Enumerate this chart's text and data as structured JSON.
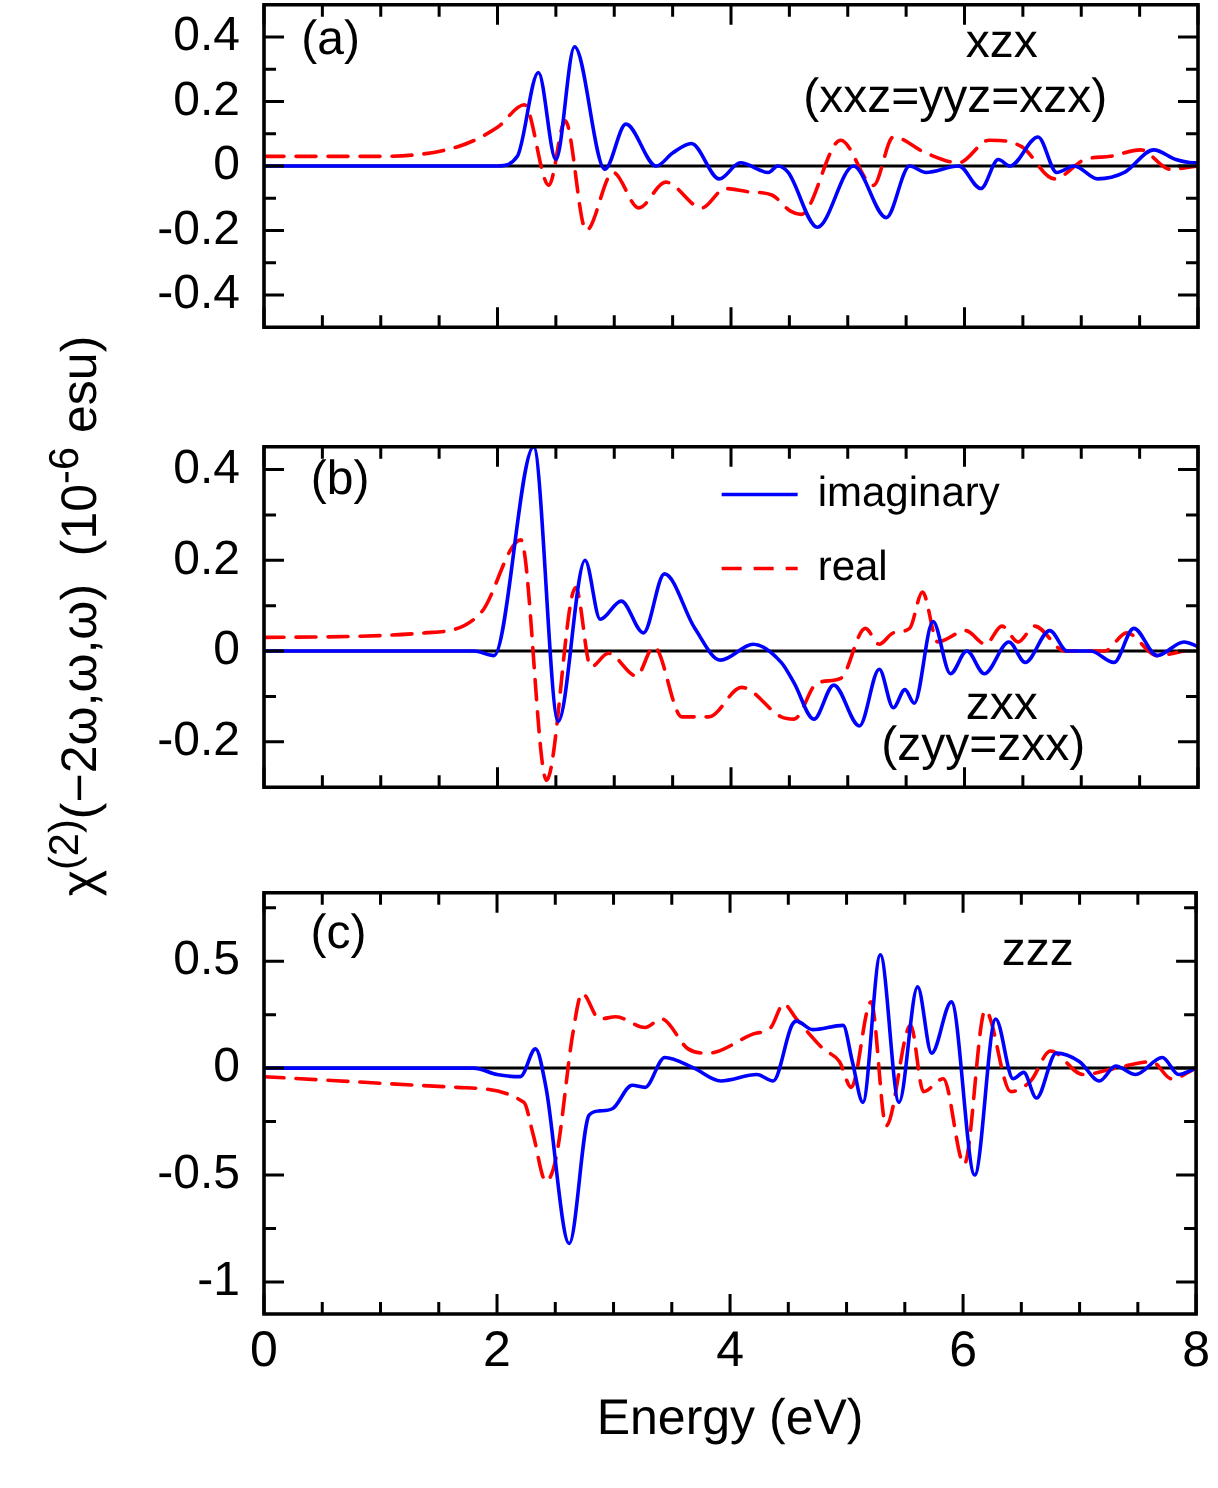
{
  "chart_data": [
    {
      "type": "line",
      "marker": "none",
      "xlim": [
        0,
        8
      ],
      "ylim": [
        -0.5,
        0.5
      ],
      "tick_labels": "y",
      "xticks": [
        0,
        {
          "value": 0.5,
          "label": null
        },
        {
          "value": 1,
          "label": null
        },
        {
          "value": 1.5,
          "label": null
        },
        2,
        {
          "value": 2.5,
          "label": null
        },
        {
          "value": 3,
          "label": null
        },
        {
          "value": 3.5,
          "label": null
        },
        4,
        {
          "value": 4.5,
          "label": null
        },
        {
          "value": 5,
          "label": null
        },
        {
          "value": 5.5,
          "label": null
        },
        6,
        {
          "value": 6.5,
          "label": null
        },
        {
          "value": 7,
          "label": null
        },
        {
          "value": 7.5,
          "label": null
        },
        8
      ],
      "yticks": [
        -0.4,
        {
          "value": -0.3,
          "label": null
        },
        -0.2,
        {
          "value": -0.1,
          "label": null
        },
        0,
        {
          "value": 0.1,
          "label": null
        },
        0.2,
        {
          "value": 0.3,
          "label": null
        },
        0.4
      ],
      "ref_lines": [
        {
          "axis": "y",
          "value": 0,
          "color": "#000000"
        }
      ],
      "annotations": [
        "(a)",
        "xzx",
        "(xxz=yyz=xzx)"
      ],
      "series": [
        {
          "color": "#0000ff",
          "line_style": "solid",
          "x": [
            0,
            1.9,
            2.0,
            2.17,
            2.35,
            2.5,
            2.66,
            2.92,
            3.1,
            3.36,
            3.5,
            3.66,
            3.9,
            4.08,
            4.32,
            4.4,
            4.49,
            4.74,
            5.05,
            5.33,
            5.53,
            5.67,
            5.95,
            6.14,
            6.29,
            6.39,
            6.63,
            6.79,
            6.94,
            7.14,
            7.37,
            7.62,
            7.81,
            7.96,
            8
          ],
          "values": [
            0,
            0,
            0,
            0.03,
            0.29,
            0.02,
            0.37,
            -0.01,
            0.13,
            0,
            0.04,
            0.07,
            -0.04,
            0.01,
            -0.02,
            0,
            -0.02,
            -0.19,
            0,
            -0.16,
            0,
            -0.02,
            0,
            -0.07,
            0.02,
            0,
            0.09,
            -0.02,
            0,
            -0.04,
            -0.02,
            0.05,
            0.02,
            0.01,
            0.01
          ]
        },
        {
          "color": "#ff0000",
          "line_style": "dashed",
          "x": [
            0,
            1.0,
            1.66,
            2.0,
            2.23,
            2.44,
            2.58,
            2.76,
            2.99,
            3.21,
            3.44,
            3.75,
            3.95,
            4.15,
            4.35,
            4.51,
            4.6,
            4.94,
            5.22,
            5.39,
            5.67,
            5.95,
            6.21,
            6.49,
            6.77,
            7.03,
            7.25,
            7.51,
            7.76,
            8
          ],
          "values": [
            0.03,
            0.03,
            0.06,
            0.12,
            0.19,
            -0.06,
            0.14,
            -0.2,
            -0.02,
            -0.13,
            -0.05,
            -0.13,
            -0.07,
            -0.08,
            -0.09,
            -0.14,
            -0.15,
            0.08,
            -0.06,
            0.09,
            0.04,
            0.01,
            0.08,
            0.06,
            -0.04,
            0.02,
            0.03,
            0.05,
            -0.01,
            0
          ]
        }
      ]
    },
    {
      "type": "line",
      "marker": "none",
      "xlim": [
        0,
        8
      ],
      "ylim": [
        -0.3,
        0.45
      ],
      "tick_labels": "y",
      "legend": "top right",
      "ylabel": "χ$^{(2)}$(−2ω,ω,ω)  (10$^{-6}$ esu)",
      "xticks": [
        0,
        {
          "value": 0.5,
          "label": null
        },
        {
          "value": 1,
          "label": null
        },
        {
          "value": 1.5,
          "label": null
        },
        2,
        {
          "value": 2.5,
          "label": null
        },
        {
          "value": 3,
          "label": null
        },
        {
          "value": 3.5,
          "label": null
        },
        4,
        {
          "value": 4.5,
          "label": null
        },
        {
          "value": 5,
          "label": null
        },
        {
          "value": 5.5,
          "label": null
        },
        6,
        {
          "value": 6.5,
          "label": null
        },
        {
          "value": 7,
          "label": null
        },
        {
          "value": 7.5,
          "label": null
        },
        8
      ],
      "yticks": [
        -0.2,
        {
          "value": -0.1,
          "label": null
        },
        0,
        {
          "value": 0.1,
          "label": null
        },
        0.2,
        {
          "value": 0.3,
          "label": null
        },
        0.4
      ],
      "ref_lines": [
        {
          "axis": "y",
          "value": 0,
          "color": "#000000"
        }
      ],
      "annotations": [
        "(b)",
        "zxx",
        "(zyy=zxx)"
      ],
      "series": [
        {
          "name": "imaginary",
          "color": "#0000ff",
          "line_style": "solid",
          "x": [
            0,
            1.8,
            1.97,
            2.31,
            2.52,
            2.75,
            2.88,
            3.06,
            3.25,
            3.43,
            3.69,
            3.91,
            4.19,
            4.43,
            4.54,
            4.71,
            4.88,
            5.1,
            5.27,
            5.39,
            5.49,
            5.57,
            5.73,
            5.88,
            6.02,
            6.17,
            6.38,
            6.52,
            6.73,
            6.88,
            7.08,
            7.28,
            7.45,
            7.65,
            7.88,
            8
          ],
          "values": [
            0,
            0,
            -0.01,
            0.45,
            -0.155,
            0.2,
            0.07,
            0.11,
            0.04,
            0.17,
            0.05,
            -0.02,
            0.015,
            -0.025,
            -0.07,
            -0.15,
            -0.075,
            -0.165,
            -0.04,
            -0.125,
            -0.085,
            -0.115,
            0.065,
            -0.05,
            0,
            -0.05,
            0.02,
            -0.025,
            0.045,
            0,
            0,
            -0.025,
            0.05,
            -0.01,
            0.02,
            0.01
          ]
        },
        {
          "name": "real",
          "color": "#ff0000",
          "line_style": "dashed",
          "x": [
            0,
            1.38,
            1.86,
            2.2,
            2.42,
            2.67,
            2.8,
            2.95,
            3.19,
            3.34,
            3.58,
            3.81,
            4.09,
            4.43,
            4.54,
            4.74,
            4.94,
            5.15,
            5.27,
            5.39,
            5.53,
            5.64,
            5.77,
            6.01,
            6.18,
            6.32,
            6.46,
            6.6,
            6.86,
            7.2,
            7.39,
            7.65,
            7.88
          ],
          "values": [
            0.03,
            0.04,
            0.085,
            0.245,
            -0.285,
            0.14,
            -0.035,
            -0.005,
            -0.055,
            0.01,
            -0.145,
            -0.145,
            -0.08,
            -0.145,
            -0.15,
            -0.07,
            -0.06,
            0.05,
            0.015,
            0.04,
            0.05,
            0.13,
            0.02,
            0.045,
            0.015,
            0.055,
            0.02,
            0.055,
            0,
            0,
            0.04,
            -0.01,
            0
          ]
        }
      ]
    },
    {
      "type": "line",
      "marker": "none",
      "xlim": [
        0,
        8
      ],
      "ylim": [
        -1.15,
        0.82
      ],
      "xlabel": "Energy (eV)",
      "xticks": [
        0,
        {
          "value": 0.5,
          "label": null
        },
        {
          "value": 1,
          "label": null
        },
        {
          "value": 1.5,
          "label": null
        },
        2,
        {
          "value": 2.5,
          "label": null
        },
        {
          "value": 3,
          "label": null
        },
        {
          "value": 3.5,
          "label": null
        },
        4,
        {
          "value": 4.5,
          "label": null
        },
        {
          "value": 5,
          "label": null
        },
        {
          "value": 5.5,
          "label": null
        },
        6,
        {
          "value": 6.5,
          "label": null
        },
        {
          "value": 7,
          "label": null
        },
        {
          "value": 7.5,
          "label": null
        },
        8
      ],
      "yticks": [
        -1,
        {
          "value": -0.75,
          "label": null
        },
        -0.5,
        {
          "value": -0.25,
          "label": null
        },
        0,
        {
          "value": 0.25,
          "label": null
        },
        0.5,
        {
          "value": 0.75,
          "label": null
        }
      ],
      "ref_lines": [
        {
          "axis": "y",
          "value": 0,
          "color": "#000000"
        }
      ],
      "annotations": [
        "(c)",
        "zzz"
      ],
      "series": [
        {
          "color": "#0000ff",
          "line_style": "solid",
          "x": [
            0,
            1.8,
            2.0,
            2.2,
            2.33,
            2.42,
            2.62,
            2.79,
            2.88,
            2.99,
            3.16,
            3.27,
            3.44,
            3.69,
            3.92,
            4.23,
            4.37,
            4.53,
            4.57,
            4.71,
            4.97,
            5.05,
            5.14,
            5.29,
            5.45,
            5.61,
            5.73,
            5.9,
            6.1,
            6.28,
            6.43,
            6.52,
            6.63,
            6.8,
            7.0,
            7.17,
            7.31,
            7.48,
            7.71,
            7.85,
            8
          ],
          "values": [
            0,
            0,
            -0.03,
            -0.04,
            0.09,
            -0.09,
            -0.82,
            -0.22,
            -0.2,
            -0.19,
            -0.08,
            -0.09,
            0.05,
            0,
            -0.06,
            -0.03,
            -0.06,
            0.2,
            0.22,
            0.18,
            0.2,
            0.03,
            -0.16,
            0.53,
            -0.16,
            0.38,
            0.07,
            0.31,
            -0.5,
            0.23,
            -0.05,
            -0.02,
            -0.14,
            0.07,
            0.03,
            -0.06,
            0.01,
            -0.03,
            0.05,
            -0.03,
            0
          ]
        },
        {
          "color": "#ff0000",
          "line_style": "dashed",
          "x": [
            0,
            1.66,
            2.23,
            2.31,
            2.42,
            2.51,
            2.65,
            2.73,
            2.88,
            3.02,
            3.27,
            3.41,
            3.64,
            3.81,
            4.2,
            4.35,
            4.46,
            4.57,
            4.8,
            4.94,
            5.04,
            5.21,
            5.34,
            5.55,
            5.66,
            5.83,
            6.01,
            6.19,
            6.41,
            6.58,
            6.75,
            7.03,
            7.31,
            7.62,
            7.79,
            8
          ],
          "values": [
            -0.04,
            -0.09,
            -0.16,
            -0.31,
            -0.53,
            -0.41,
            0.16,
            0.35,
            0.23,
            0.24,
            0.19,
            0.23,
            0.09,
            0.07,
            0.16,
            0.19,
            0.3,
            0.23,
            0.09,
            0.03,
            -0.09,
            0.31,
            -0.27,
            0.2,
            -0.11,
            -0.05,
            -0.45,
            0.27,
            -0.11,
            -0.06,
            0.08,
            -0.03,
            0,
            0.03,
            -0.05,
            0
          ]
        }
      ]
    }
  ]
}
